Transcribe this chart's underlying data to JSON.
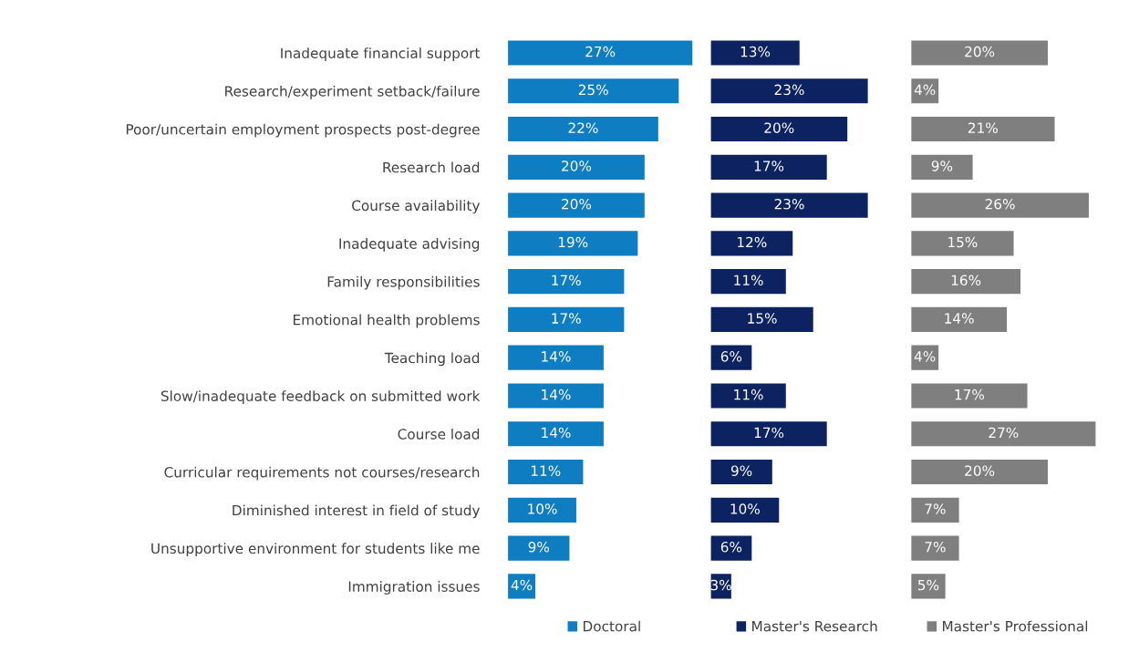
{
  "chart_data": [
    {
      "type": "bar",
      "orientation": "horizontal",
      "categories": [
        "Inadequate financial support",
        "Research/experiment setback/failure",
        "Poor/uncertain employment prospects post-degree",
        "Research load",
        "Course availability",
        "Inadequate advising",
        "Family responsibilities",
        "Emotional health problems",
        "Teaching load",
        "Slow/inadequate feedback on submitted work",
        "Course load",
        "Curricular requirements not courses/research",
        "Diminished interest in field of study",
        "Unsupportive environment for students like me",
        "Immigration issues"
      ],
      "series": [
        {
          "name": "Doctoral",
          "color": "#0f7dc2",
          "values": [
            27,
            25,
            22,
            20,
            20,
            19,
            17,
            17,
            14,
            14,
            14,
            11,
            10,
            9,
            4
          ],
          "value_labels": [
            "27%",
            "25%",
            "22%",
            "20%",
            "20%",
            "19%",
            "17%",
            "17%",
            "14%",
            "14%",
            "14%",
            "11%",
            "10%",
            "9%",
            "4%"
          ]
        }
      ],
      "legend": "bottom",
      "grid": false
    },
    {
      "type": "bar",
      "orientation": "horizontal",
      "series": [
        {
          "name": "Master's Research",
          "color": "#0d2261",
          "values": [
            13,
            23,
            20,
            17,
            23,
            12,
            11,
            15,
            6,
            11,
            17,
            9,
            10,
            6,
            3
          ],
          "value_labels": [
            "13%",
            "23%",
            "20%",
            "17%",
            "23%",
            "12%",
            "11%",
            "15%",
            "6%",
            "11%",
            "17%",
            "9%",
            "10%",
            "6%",
            "3%"
          ]
        }
      ],
      "legend": "bottom",
      "grid": false
    },
    {
      "type": "bar",
      "orientation": "horizontal",
      "series": [
        {
          "name": "Master's Professional",
          "color": "#7f7f7f",
          "values": [
            20,
            4,
            21,
            9,
            26,
            15,
            16,
            14,
            4,
            17,
            27,
            20,
            7,
            7,
            5
          ],
          "value_labels": [
            "20%",
            "4%",
            "21%",
            "9%",
            "26%",
            "15%",
            "16%",
            "14%",
            "4%",
            "17%",
            "27%",
            "20%",
            "7%",
            "7%",
            "5%"
          ]
        }
      ],
      "legend": "bottom",
      "grid": false
    }
  ]
}
